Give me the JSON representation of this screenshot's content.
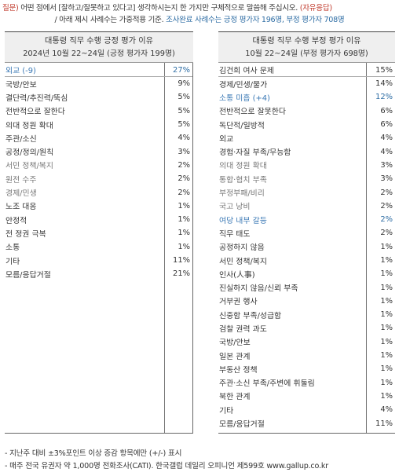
{
  "question": {
    "label": "질문)",
    "text1": "어떤 점에서 [잘하고/잘못하고 있다고] 생각하시는지 한 가지만 구체적으로 말씀해 주십시오.",
    "tag": "(자유응답)",
    "text2": "/ 아래 제시 사례수는 가중적용 기준.",
    "text3": "조사완료 사례수는 긍정 평가자 196명, 부정 평가자 708명"
  },
  "left": {
    "title": "대통령 직무 수행 긍정 평가 이유",
    "subtitle": "2024년 10월 22~24일 (긍정 평가자 199명)",
    "rows": [
      {
        "label": "외교 (-9)",
        "value": "27%"
      },
      {
        "label": "국방/안보",
        "value": "9%"
      },
      {
        "label": "결단력/추진력/뚝심",
        "value": "5%"
      },
      {
        "label": "전반적으로 잘한다",
        "value": "5%"
      },
      {
        "label": "의대 정원 확대",
        "value": "5%"
      },
      {
        "label": "주관/소신",
        "value": "4%"
      },
      {
        "label": "공정/정의/원칙",
        "value": "3%"
      },
      {
        "label": "서민 정책/복지",
        "value": "2%"
      },
      {
        "label": "원전 수주",
        "value": "2%"
      },
      {
        "label": "경제/민생",
        "value": "2%"
      },
      {
        "label": "노조 대응",
        "value": "1%"
      },
      {
        "label": "안정적",
        "value": "1%"
      },
      {
        "label": "전 정권 극복",
        "value": "1%"
      },
      {
        "label": "소통",
        "value": "1%"
      },
      {
        "label": "기타",
        "value": "11%"
      },
      {
        "label": "모름/응답거절",
        "value": "21%"
      }
    ]
  },
  "right": {
    "title": "대통령 직무 수행 부정 평가 이유",
    "subtitle": "10월 22~24일 (부정 평가자 698명)",
    "rows": [
      {
        "label": "김건희 여사 문제",
        "value": "15%"
      },
      {
        "label": "경제/민생/물가",
        "value": "14%"
      },
      {
        "label": "소통 미흡 (+4)",
        "value": "12%"
      },
      {
        "label": "전반적으로 잘못한다",
        "value": "6%"
      },
      {
        "label": "독단적/일방적",
        "value": "6%"
      },
      {
        "label": "외교",
        "value": "4%"
      },
      {
        "label": "경험·자질 부족/무능함",
        "value": "4%"
      },
      {
        "label": "의대 정원 확대",
        "value": "3%"
      },
      {
        "label": "통합·협치 부족",
        "value": "3%"
      },
      {
        "label": "부정부패/비리",
        "value": "2%"
      },
      {
        "label": "국고 낭비",
        "value": "2%"
      },
      {
        "label": "여당 내부 갈등",
        "value": "2%"
      },
      {
        "label": "직무 태도",
        "value": "2%"
      },
      {
        "label": "공정하지 않음",
        "value": "1%"
      },
      {
        "label": "서민 정책/복지",
        "value": "1%"
      },
      {
        "label": "인사(人事)",
        "value": "1%"
      },
      {
        "label": "진실하지 않음/신뢰 부족",
        "value": "1%"
      },
      {
        "label": "거부권 행사",
        "value": "1%"
      },
      {
        "label": "신중함 부족/성급함",
        "value": "1%"
      },
      {
        "label": "검찰 권력 과도",
        "value": "1%"
      },
      {
        "label": "국방/안보",
        "value": "1%"
      },
      {
        "label": "일본 관계",
        "value": "1%"
      },
      {
        "label": "부동산 정책",
        "value": "1%"
      },
      {
        "label": "주관·소신 부족/주변에 휘둘림",
        "value": "1%"
      },
      {
        "label": "북한 관계",
        "value": "1%"
      },
      {
        "label": "기타",
        "value": "4%"
      },
      {
        "label": "모름/응답거절",
        "value": "11%"
      }
    ]
  },
  "footer": {
    "line1": "- 지난주 대비 ±3%포인트 이상 증감 항목에만 (+/-) 표시",
    "line2": "- 매주 전국 유권자 약 1,000명 전화조사(CATI). 한국갤럽 데일리 오피니언 제599호 www.gallup.co.kr"
  }
}
